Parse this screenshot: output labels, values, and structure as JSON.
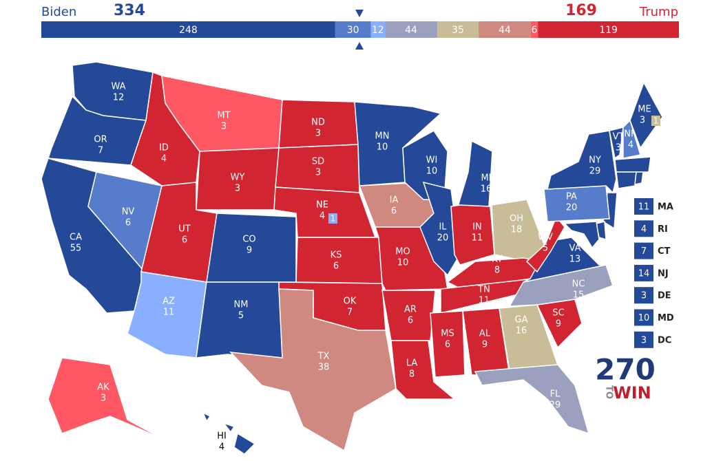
{
  "header": {
    "left_name": "Biden",
    "left_total": 334,
    "right_name": "Trump",
    "right_total": 169
  },
  "bar": [
    {
      "value": 248,
      "color": "#244999"
    },
    {
      "value": 30,
      "color": "#577ccc"
    },
    {
      "value": 12,
      "color": "#8aafff"
    },
    {
      "value": 44,
      "color": "#9aa0bd"
    },
    {
      "value": 35,
      "color": "#c9bd98"
    },
    {
      "value": 44,
      "color": "#cf8980"
    },
    {
      "value": 6,
      "color": "#ff5865"
    },
    {
      "value": 119,
      "color": "#d22532"
    }
  ],
  "states": [
    {
      "abbr": "WA",
      "ev": 12,
      "color": "#244999"
    },
    {
      "abbr": "OR",
      "ev": 7,
      "color": "#244999"
    },
    {
      "abbr": "CA",
      "ev": 55,
      "color": "#244999"
    },
    {
      "abbr": "NV",
      "ev": 6,
      "color": "#577ccc"
    },
    {
      "abbr": "ID",
      "ev": 4,
      "color": "#d22532"
    },
    {
      "abbr": "MT",
      "ev": 3,
      "color": "#ff5865"
    },
    {
      "abbr": "WY",
      "ev": 3,
      "color": "#d22532"
    },
    {
      "abbr": "UT",
      "ev": 6,
      "color": "#d22532"
    },
    {
      "abbr": "AZ",
      "ev": 11,
      "color": "#8aafff"
    },
    {
      "abbr": "CO",
      "ev": 9,
      "color": "#244999"
    },
    {
      "abbr": "NM",
      "ev": 5,
      "color": "#244999"
    },
    {
      "abbr": "ND",
      "ev": 3,
      "color": "#d22532"
    },
    {
      "abbr": "SD",
      "ev": 3,
      "color": "#d22532"
    },
    {
      "abbr": "NE",
      "ev": 4,
      "color": "#d22532"
    },
    {
      "abbr": "KS",
      "ev": 6,
      "color": "#d22532"
    },
    {
      "abbr": "OK",
      "ev": 7,
      "color": "#d22532"
    },
    {
      "abbr": "TX",
      "ev": 38,
      "color": "#cf8980"
    },
    {
      "abbr": "MN",
      "ev": 10,
      "color": "#244999"
    },
    {
      "abbr": "IA",
      "ev": 6,
      "color": "#cf8980"
    },
    {
      "abbr": "MO",
      "ev": 10,
      "color": "#d22532"
    },
    {
      "abbr": "AR",
      "ev": 6,
      "color": "#d22532"
    },
    {
      "abbr": "LA",
      "ev": 8,
      "color": "#d22532"
    },
    {
      "abbr": "WI",
      "ev": 10,
      "color": "#244999"
    },
    {
      "abbr": "IL",
      "ev": 20,
      "color": "#244999"
    },
    {
      "abbr": "MI",
      "ev": 16,
      "color": "#244999"
    },
    {
      "abbr": "IN",
      "ev": 11,
      "color": "#d22532"
    },
    {
      "abbr": "OH",
      "ev": 18,
      "color": "#c9bd98"
    },
    {
      "abbr": "KY",
      "ev": 8,
      "color": "#d22532"
    },
    {
      "abbr": "TN",
      "ev": 11,
      "color": "#d22532"
    },
    {
      "abbr": "MS",
      "ev": 6,
      "color": "#d22532"
    },
    {
      "abbr": "AL",
      "ev": 9,
      "color": "#d22532"
    },
    {
      "abbr": "GA",
      "ev": 16,
      "color": "#c9bd98"
    },
    {
      "abbr": "FL",
      "ev": 29,
      "color": "#9aa0bd"
    },
    {
      "abbr": "SC",
      "ev": 9,
      "color": "#d22532"
    },
    {
      "abbr": "NC",
      "ev": 15,
      "color": "#9aa0bd"
    },
    {
      "abbr": "VA",
      "ev": 13,
      "color": "#244999"
    },
    {
      "abbr": "WV",
      "ev": 5,
      "color": "#d22532"
    },
    {
      "abbr": "PA",
      "ev": 20,
      "color": "#577ccc"
    },
    {
      "abbr": "NY",
      "ev": 29,
      "color": "#244999"
    },
    {
      "abbr": "VT",
      "ev": 3,
      "color": "#244999"
    },
    {
      "abbr": "NH",
      "ev": 4,
      "color": "#577ccc"
    },
    {
      "abbr": "ME",
      "ev": 3,
      "color": "#244999"
    },
    {
      "abbr": "AK",
      "ev": 3,
      "color": "#ff5865"
    },
    {
      "abbr": "HI",
      "ev": 4,
      "color": "#244999"
    }
  ],
  "splits": [
    {
      "state": "ME",
      "value": 1,
      "color": "#c9bd98"
    },
    {
      "state": "NE",
      "value": 1,
      "color": "#8aafff"
    }
  ],
  "small_states": [
    {
      "abbr": "MA",
      "ev": 11,
      "color": "#244999"
    },
    {
      "abbr": "RI",
      "ev": 4,
      "color": "#244999"
    },
    {
      "abbr": "CT",
      "ev": 7,
      "color": "#244999"
    },
    {
      "abbr": "NJ",
      "ev": 14,
      "color": "#244999"
    },
    {
      "abbr": "DE",
      "ev": 3,
      "color": "#244999"
    },
    {
      "abbr": "MD",
      "ev": 10,
      "color": "#244999"
    },
    {
      "abbr": "DC",
      "ev": 3,
      "color": "#244999"
    }
  ],
  "logo": {
    "number": "270",
    "to": "TO",
    "win": "WIN"
  }
}
